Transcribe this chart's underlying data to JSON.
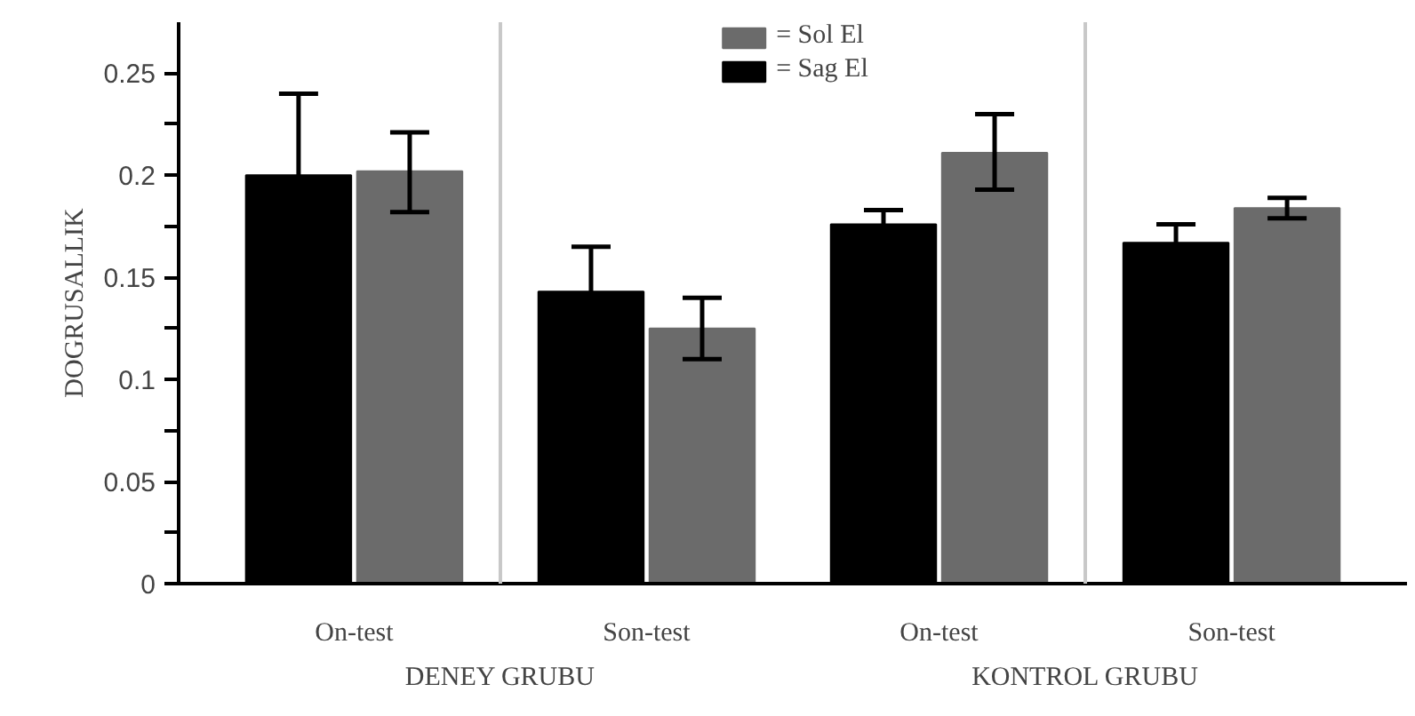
{
  "chart_data": {
    "type": "bar",
    "ylabel": "DOGRUSALLIK",
    "categories": [
      "On-test",
      "Son-test",
      "On-test",
      "Son-test"
    ],
    "series": [
      {
        "name": "= Sag El",
        "color": "#000000",
        "values": [
          0.2,
          0.143,
          0.176,
          0.167
        ],
        "errors": [
          0.04,
          0.022,
          0.007,
          0.009
        ]
      },
      {
        "name": "= Sol El",
        "color": "#6b6b6b",
        "values": [
          0.202,
          0.125,
          0.211,
          0.184
        ],
        "errors": [
          [
            0.182,
            0.221
          ],
          [
            0.11,
            0.14
          ],
          [
            0.193,
            0.23
          ],
          [
            0.179,
            0.189
          ]
        ]
      }
    ],
    "ylim": [
      0,
      0.275
    ],
    "yticks": [
      0,
      {
        "value": 0.025,
        "label": null
      },
      0.05,
      {
        "value": 0.075,
        "label": null
      },
      0.1,
      {
        "value": 0.125,
        "label": null
      },
      0.15,
      {
        "value": 0.175,
        "label": null
      },
      0.2,
      {
        "value": 0.225,
        "label": null
      },
      0.25
    ],
    "annotations": [
      "DENEY GRUBU",
      "KONTROL GRUBU"
    ],
    "grid": false,
    "legend": "top"
  }
}
